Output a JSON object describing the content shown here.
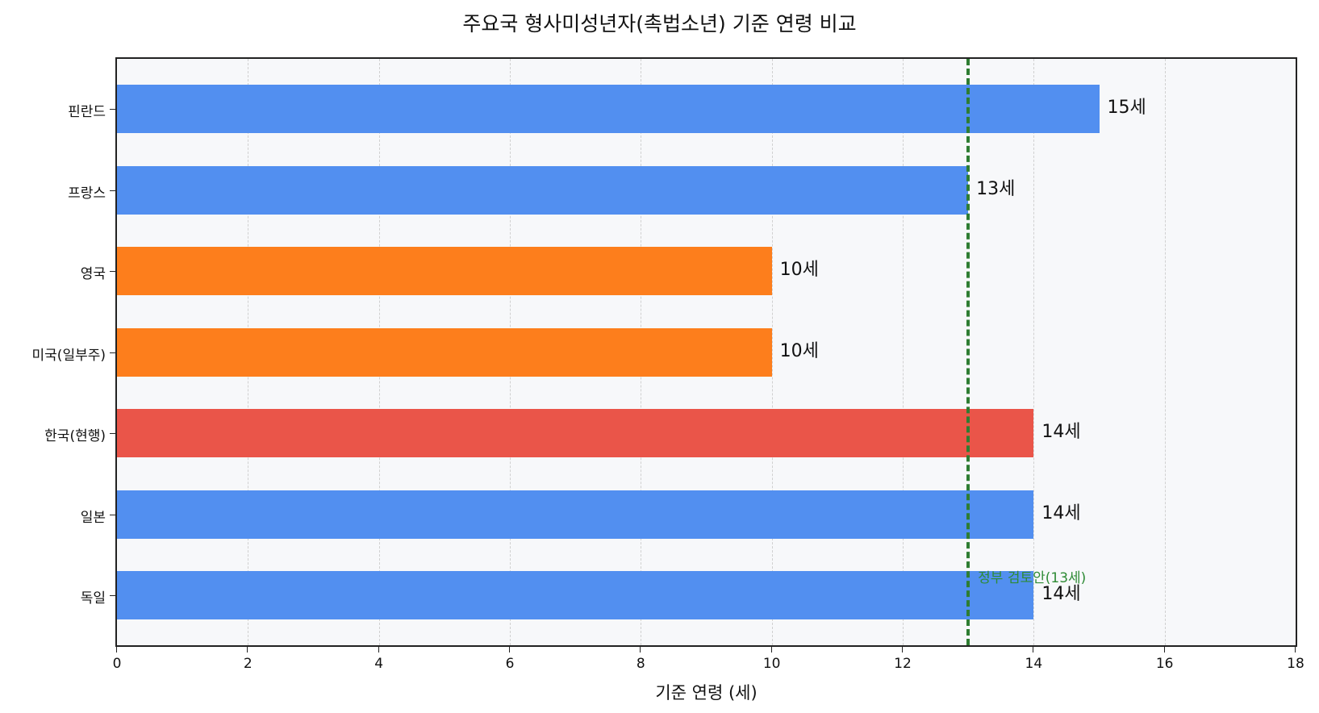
{
  "chart_data": {
    "type": "bar",
    "orientation": "horizontal",
    "title": "주요국 형사미성년자(촉법소년) 기준 연령 비교",
    "xlabel": "기준 연령 (세)",
    "ylabel": "",
    "xlim": [
      0,
      18
    ],
    "xticks": [
      0,
      2,
      4,
      6,
      8,
      10,
      12,
      14,
      16,
      18
    ],
    "grid": "x, dashed",
    "categories": [
      "핀란드",
      "프랑스",
      "영국",
      "미국(일부주)",
      "한국(현행)",
      "일본",
      "독일"
    ],
    "values": [
      15,
      13,
      10,
      10,
      14,
      14,
      14
    ],
    "value_labels": [
      "15세",
      "13세",
      "10세",
      "10세",
      "14세",
      "14세",
      "14세"
    ],
    "colors": [
      "#528ff0",
      "#528ff0",
      "#fd7e1c",
      "#fd7e1c",
      "#ea5549",
      "#528ff0",
      "#528ff0"
    ],
    "reference_line": {
      "x": 13,
      "style": "dashed",
      "color": "#2e7d32",
      "label": "정부 검토안(13세)"
    }
  }
}
